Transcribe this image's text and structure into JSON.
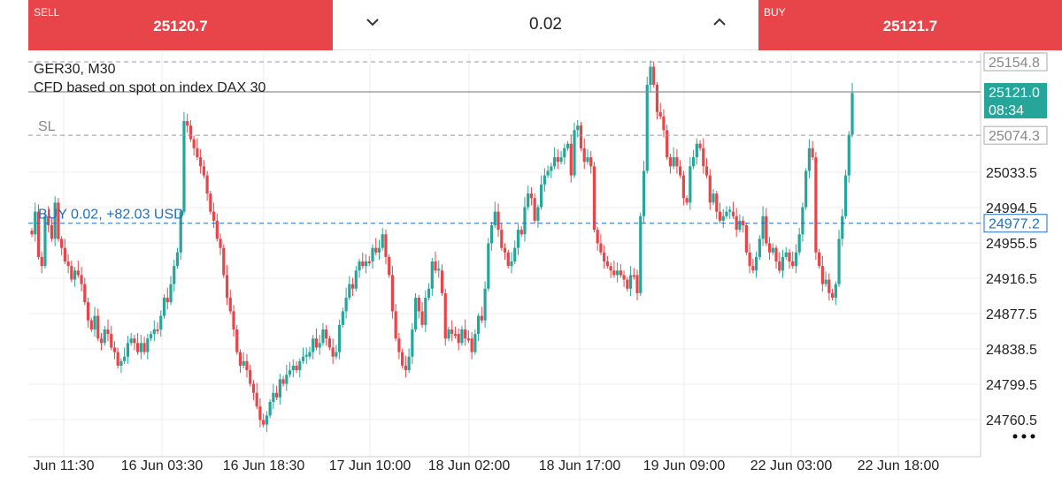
{
  "trade": {
    "sell_label": "SELL",
    "sell_price": "25120.7",
    "buy_label": "BUY",
    "buy_price": "25121.7",
    "volume": "0.02"
  },
  "symbol": {
    "name": "GER30, M30",
    "description": "CFD based on spot on index DAX 30"
  },
  "orders": {
    "sl_label": "SL",
    "sl_price": "25074.3",
    "position_label": "BUY 0.02,   +82.03 USD",
    "position_price": "24977.2",
    "high_price": "25154.8",
    "current_price": "25121.0",
    "countdown": "08:34"
  },
  "colors": {
    "up": "#26a69a",
    "down": "#e8454a",
    "sell_bg": "#e8454a",
    "buy_bg": "#e8454a",
    "position_line": "#1e6fc2",
    "current_bg": "#26a69a"
  },
  "chart_data": {
    "type": "candlestick",
    "symbol": "GER30",
    "timeframe": "M30",
    "y_ticks": [
      "25033.5",
      "24994.5",
      "24955.5",
      "24916.5",
      "24877.5",
      "24838.5",
      "24799.5",
      "24760.5"
    ],
    "x_ticks": [
      "Jun 11:30",
      "16 Jun 03:30",
      "16 Jun 18:30",
      "17 Jun 10:00",
      "18 Jun 02:00",
      "18 Jun 17:00",
      "19 Jun 09:00",
      "22 Jun 03:00",
      "22 Jun 18:00"
    ],
    "ylim": [
      24742,
      25170
    ],
    "levels": {
      "high": 25154.8,
      "current": 25121.0,
      "stop_loss": 25074.3,
      "position": 24977.2
    },
    "closes": [
      24965,
      24990,
      24940,
      24930,
      24985,
      24975,
      24960,
      25000,
      24960,
      24950,
      24935,
      24930,
      24915,
      24925,
      24920,
      24910,
      24890,
      24870,
      24860,
      24875,
      24850,
      24845,
      24860,
      24855,
      24840,
      24835,
      24820,
      24825,
      24830,
      24845,
      24850,
      24845,
      24835,
      24845,
      24835,
      24850,
      24855,
      24860,
      24860,
      24875,
      24895,
      24890,
      24910,
      24930,
      24945,
      24990,
      25090,
      25085,
      25070,
      25060,
      25050,
      25040,
      25030,
      25010,
      24990,
      24980,
      24960,
      24950,
      24920,
      24895,
      24880,
      24860,
      24835,
      24820,
      24825,
      24815,
      24800,
      24790,
      24775,
      24760,
      24755,
      24765,
      24780,
      24790,
      24785,
      24805,
      24800,
      24810,
      24815,
      24820,
      24815,
      24825,
      24830,
      24830,
      24835,
      24850,
      24840,
      24845,
      24860,
      24850,
      24840,
      24830,
      24835,
      24865,
      24880,
      24895,
      24910,
      24905,
      24925,
      24935,
      24930,
      24935,
      24935,
      24950,
      24945,
      24950,
      24965,
      24940,
      24920,
      24880,
      24850,
      24835,
      24820,
      24815,
      24830,
      24860,
      24895,
      24880,
      24865,
      24895,
      24905,
      24935,
      24925,
      24925,
      24900,
      24850,
      24860,
      24855,
      24855,
      24845,
      24860,
      24850,
      24850,
      24835,
      24855,
      24875,
      24870,
      24905,
      24955,
      24975,
      24990,
      24970,
      24950,
      24945,
      24930,
      24935,
      24950,
      24970,
      24965,
      24995,
      25010,
      25005,
      24980,
      24995,
      25020,
      25030,
      25035,
      25040,
      25050,
      25045,
      25050,
      25060,
      25065,
      25030,
      25080,
      25085,
      25060,
      25045,
      25050,
      25040,
      24970,
      24955,
      24945,
      24935,
      24930,
      24925,
      24920,
      24925,
      24920,
      24915,
      24905,
      24920,
      24920,
      24900,
      24985,
      25035,
      25130,
      25150,
      25130,
      25100,
      25095,
      25080,
      25050,
      25040,
      25050,
      25040,
      25030,
      25005,
      25000,
      25040,
      25050,
      25065,
      25060,
      25040,
      25030,
      25000,
      25010,
      24990,
      24980,
      24985,
      24990,
      24990,
      24985,
      24970,
      24980,
      24975,
      24945,
      24930,
      24925,
      24940,
      24960,
      24985,
      24955,
      24945,
      24950,
      24935,
      24925,
      24940,
      24945,
      24935,
      24930,
      24945,
      24965,
      24995,
      25035,
      25060,
      25050,
      24945,
      24930,
      24910,
      24915,
      24900,
      24895,
      24910,
      24960,
      24985,
      25030,
      25075,
      25121
    ]
  }
}
